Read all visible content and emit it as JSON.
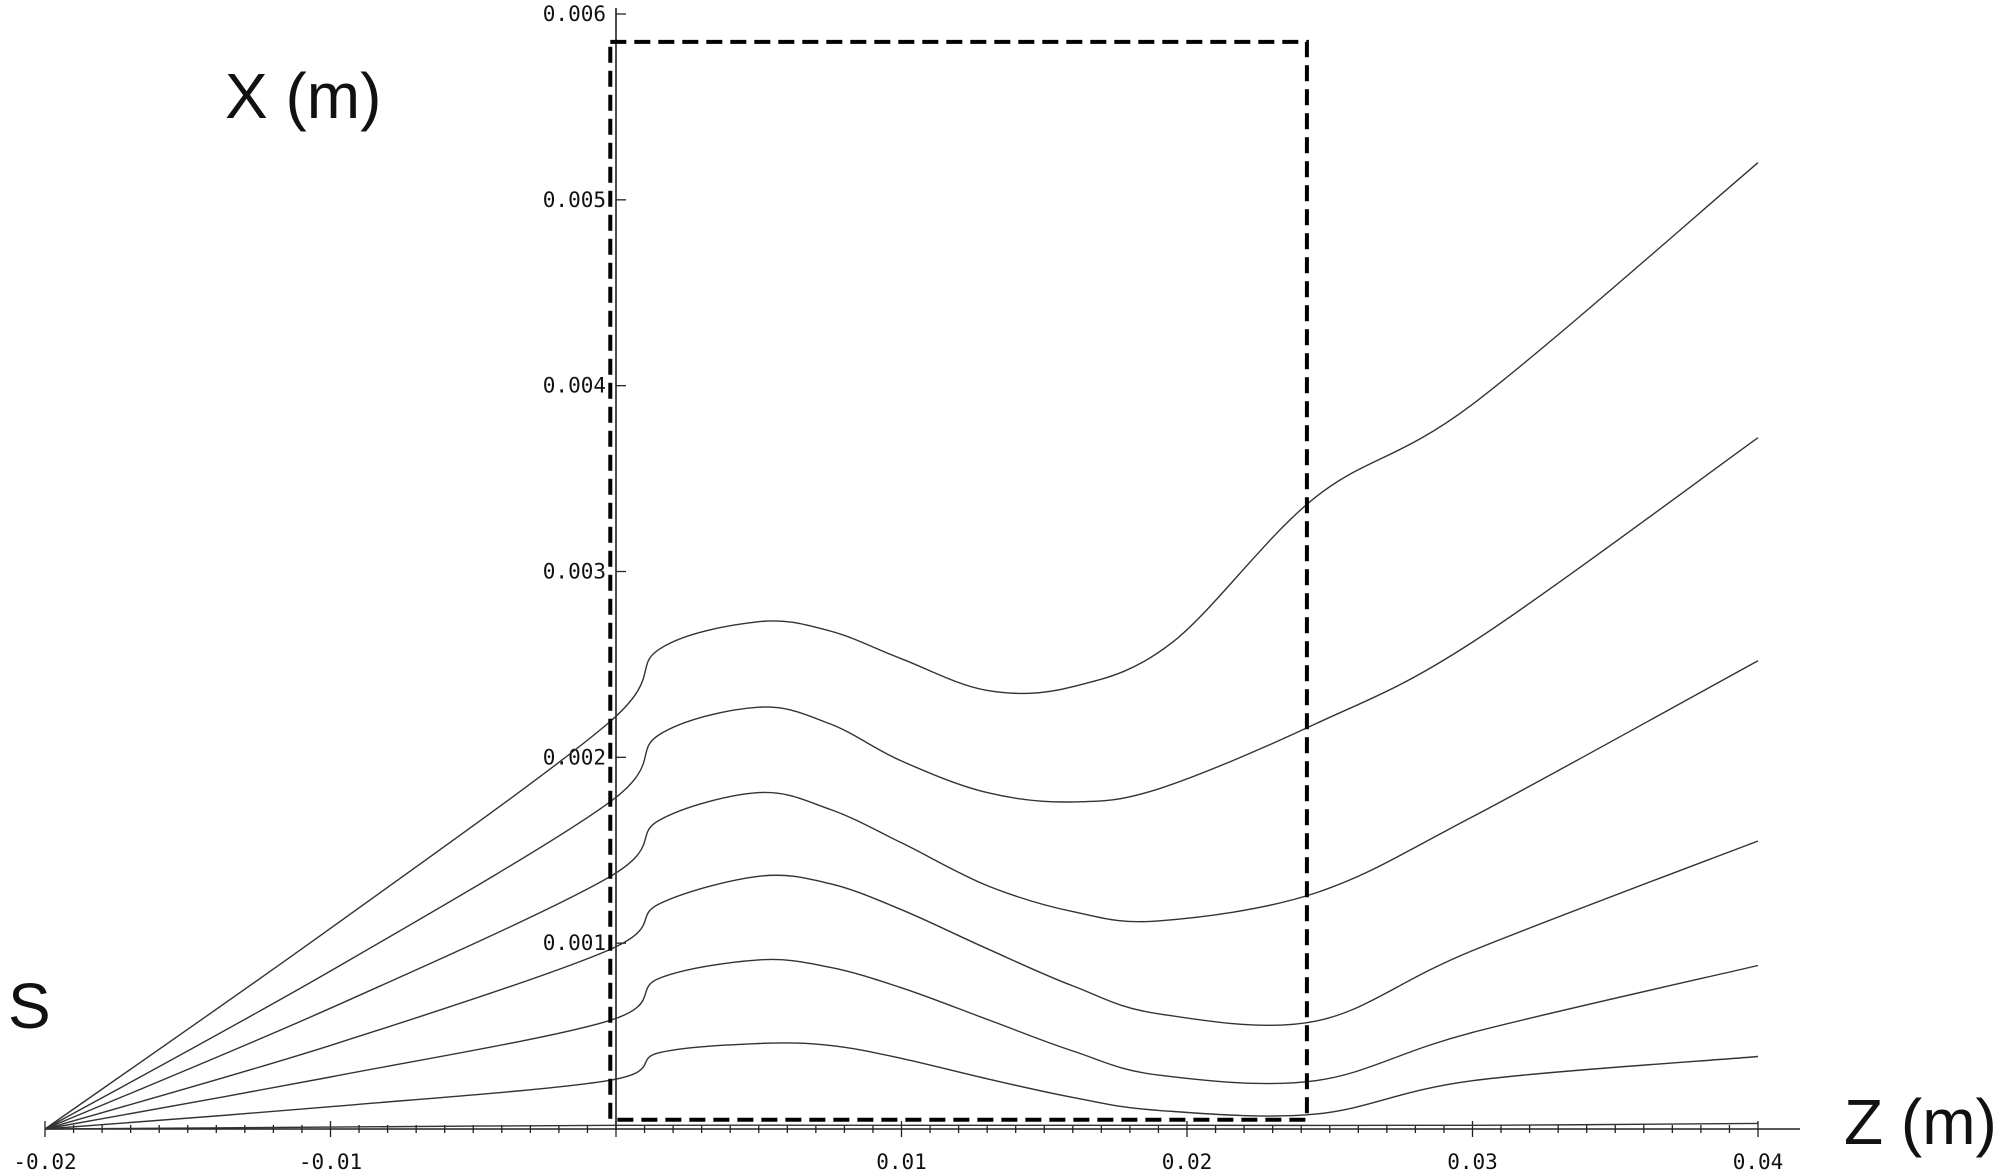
{
  "chart_data": {
    "type": "line",
    "title": "",
    "xlabel": "Z (m)",
    "ylabel": "X (m)",
    "source_label": "S",
    "xlim": [
      -0.02,
      0.04
    ],
    "ylim": [
      0,
      0.006
    ],
    "x_ticks": [
      -0.02,
      -0.01,
      0.01,
      0.02,
      0.03,
      0.04
    ],
    "x_tick_labels": [
      "-0.02",
      "-0.01",
      "0.01",
      "0.02",
      "0.03",
      "0.04"
    ],
    "y_ticks": [
      0.001,
      0.002,
      0.003,
      0.004,
      0.005,
      0.006
    ],
    "y_tick_labels": [
      "0.001",
      "0.002",
      "0.003",
      "0.004",
      "0.005",
      "0.006"
    ],
    "grid": false,
    "region_box": {
      "x": [
        -0.0002,
        0.0242
      ],
      "y": [
        5e-05,
        0.00585
      ]
    },
    "series": [
      {
        "x": [
          -0.02,
          -0.01,
          -0.0003,
          0.0015,
          0.005,
          0.0075,
          0.01,
          0.013,
          0.016,
          0.0195,
          0.0245,
          0.03,
          0.04
        ],
        "y": [
          0,
          0.00108,
          0.00218,
          0.00258,
          0.00273,
          0.00268,
          0.00253,
          0.00236,
          0.00238,
          0.00262,
          0.0034,
          0.0039,
          0.0052
        ]
      },
      {
        "x": [
          -0.02,
          -0.01,
          -0.0003,
          0.0015,
          0.005,
          0.0075,
          0.01,
          0.013,
          0.016,
          0.019,
          0.0245,
          0.03,
          0.04
        ],
        "y": [
          0,
          0.00085,
          0.00175,
          0.00212,
          0.00227,
          0.00218,
          0.00198,
          0.00181,
          0.00176,
          0.00183,
          0.00218,
          0.00262,
          0.00372
        ]
      },
      {
        "x": [
          -0.02,
          -0.01,
          -0.0003,
          0.0015,
          0.005,
          0.0075,
          0.01,
          0.013,
          0.016,
          0.019,
          0.0245,
          0.03,
          0.04
        ],
        "y": [
          0,
          0.00065,
          0.00135,
          0.00166,
          0.00181,
          0.00172,
          0.00154,
          0.00131,
          0.00117,
          0.00112,
          0.00127,
          0.00168,
          0.00252
        ]
      },
      {
        "x": [
          -0.02,
          -0.01,
          -0.0003,
          0.0015,
          0.005,
          0.0075,
          0.01,
          0.013,
          0.016,
          0.019,
          0.0245,
          0.03,
          0.04
        ],
        "y": [
          0,
          0.00045,
          0.00096,
          0.00121,
          0.00136,
          0.00132,
          0.00118,
          0.00097,
          0.00077,
          0.00062,
          0.00058,
          0.00096,
          0.00155
        ]
      },
      {
        "x": [
          -0.02,
          -0.01,
          -0.0003,
          0.0015,
          0.005,
          0.0075,
          0.01,
          0.013,
          0.016,
          0.019,
          0.0245,
          0.03,
          0.04
        ],
        "y": [
          0,
          0.00028,
          0.00058,
          0.00081,
          0.00091,
          0.00087,
          0.00076,
          0.00059,
          0.00042,
          0.00029,
          0.00026,
          0.00052,
          0.00088
        ]
      },
      {
        "x": [
          -0.02,
          -0.01,
          -0.0003,
          0.0015,
          0.005,
          0.0075,
          0.01,
          0.013,
          0.016,
          0.019,
          0.0245,
          0.03,
          0.04
        ],
        "y": [
          0,
          0.00012,
          0.00026,
          0.00041,
          0.00046,
          0.00045,
          0.00038,
          0.00027,
          0.00017,
          0.0001,
          8e-05,
          0.00026,
          0.00039
        ]
      },
      {
        "x": [
          -0.02,
          -0.01,
          0.0,
          0.01,
          0.02,
          0.03,
          0.04
        ],
        "y": [
          0,
          1e-05,
          2e-05,
          2e-05,
          2e-05,
          2e-05,
          3e-05
        ]
      }
    ]
  }
}
